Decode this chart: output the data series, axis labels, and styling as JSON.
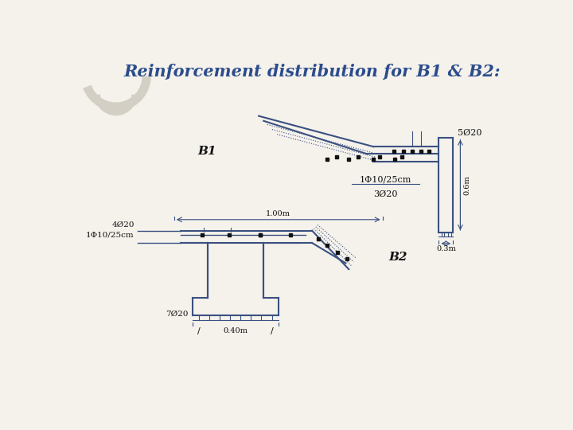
{
  "title": "Reinforcement distribution for B1 & B2:",
  "title_color": "#2B4C8C",
  "bg_color": "#F5F2EC",
  "draw_color": "#3A5080",
  "label_B1": "B1",
  "label_B2": "B2",
  "label_5o20": "5Ø20",
  "label_1phi": "1Φ10/25cm",
  "label_3o20": "3Ø20",
  "label_06m": "0.6m",
  "label_03m": "0.3m",
  "label_100m": "1.00m",
  "label_4o20": "4Ø20",
  "label_1phi2": "1Φ10/25cm",
  "label_7o20": "7Ø20",
  "label_040m": "0.40m"
}
